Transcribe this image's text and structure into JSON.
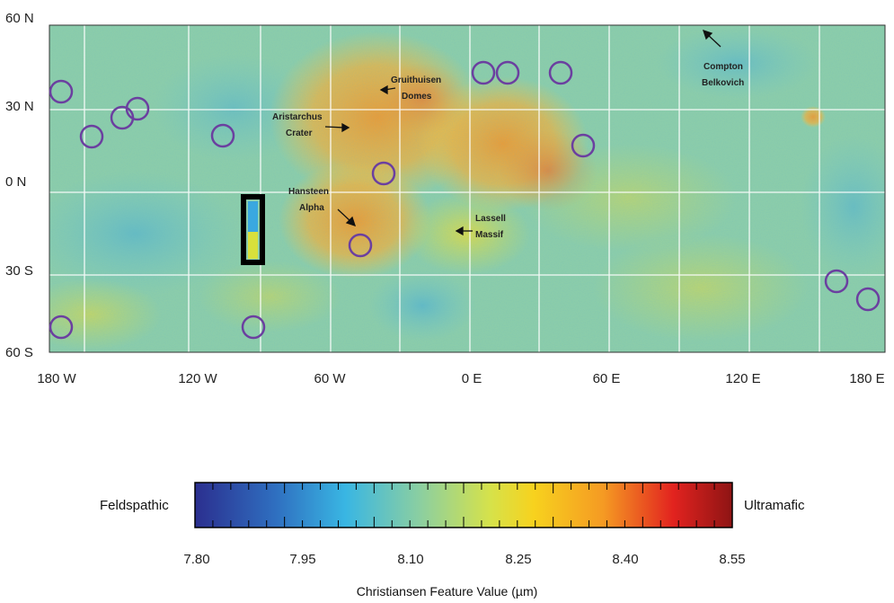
{
  "map": {
    "lat_labels": [
      "60 N",
      "30 N",
      "0 N",
      "30 S",
      "60 S"
    ],
    "lon_labels": [
      "180 W",
      "120 W",
      "60 W",
      "0 E",
      "60 E",
      "120 E",
      "180 E"
    ],
    "features": [
      {
        "id": "gruithuisen",
        "lines": [
          "Gruithuisen",
          "Domes"
        ]
      },
      {
        "id": "aristarchus",
        "lines": [
          "Aristarchus",
          "Crater"
        ]
      },
      {
        "id": "hansteen",
        "lines": [
          "Hansteen",
          "Alpha"
        ]
      },
      {
        "id": "lassell",
        "lines": [
          "Lassell",
          "Massif"
        ]
      },
      {
        "id": "compton",
        "lines": [
          "Compton",
          "Belkovich"
        ]
      }
    ],
    "marker_color": "#6b3fa0",
    "box_color": "#000000"
  },
  "colorbar": {
    "left_label": "Feldspathic",
    "right_label": "Ultramafic",
    "tick_values": [
      "7.80",
      "7.95",
      "8.10",
      "8.25",
      "8.40",
      "8.55"
    ],
    "range": [
      7.8,
      8.55
    ],
    "title": "Christiansen Feature Value (µm)",
    "colors": [
      "#2b2f8f",
      "#2f6fc0",
      "#39b6e3",
      "#8ccfa0",
      "#d6e24a",
      "#f7d21e",
      "#f59a23",
      "#e2231f",
      "#8e1414"
    ]
  }
}
